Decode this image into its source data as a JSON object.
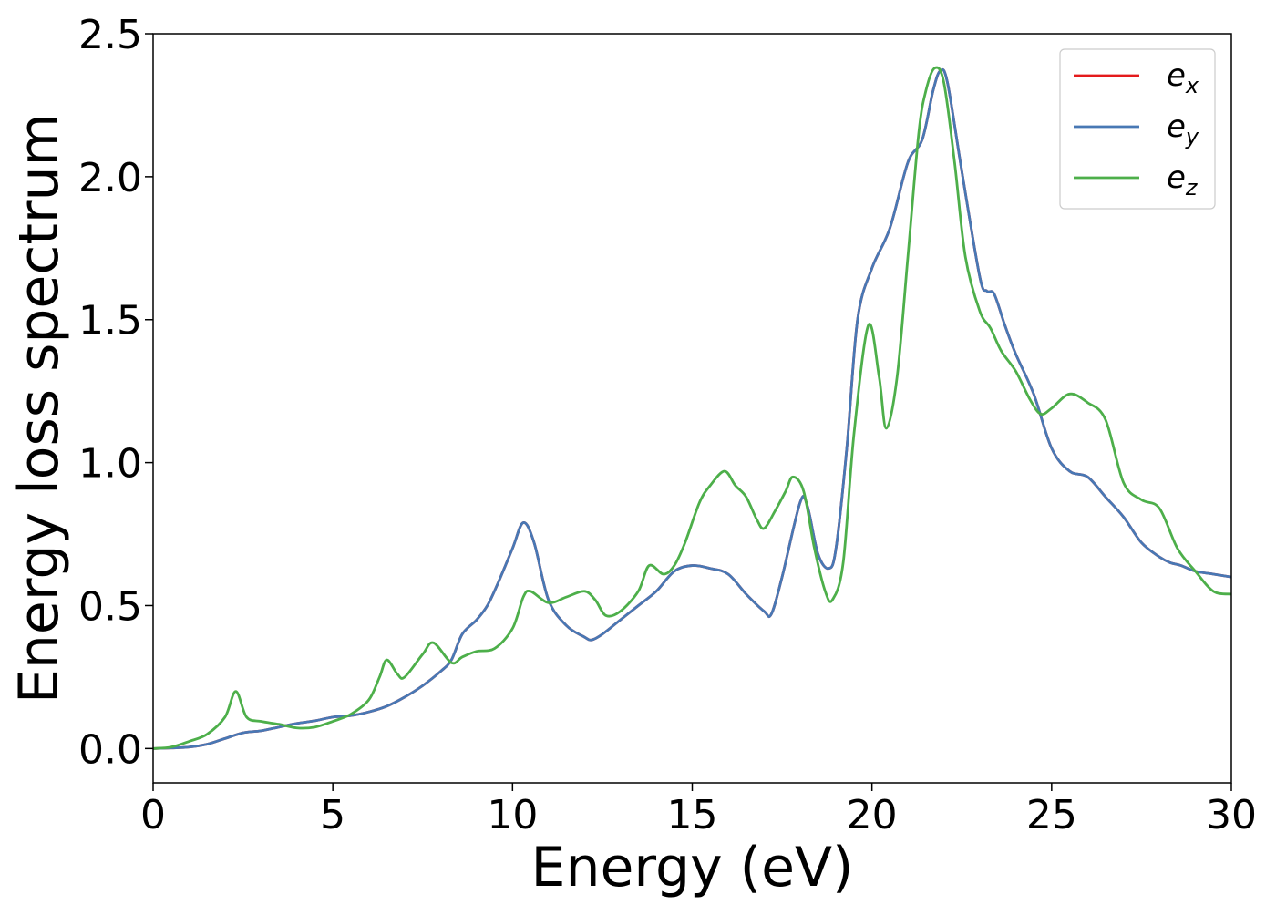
{
  "chart_data": {
    "type": "line",
    "title": "",
    "xlabel": "Energy (eV)",
    "ylabel": "Energy loss spectrum",
    "xlim": [
      0,
      30
    ],
    "ylim": [
      -0.12,
      2.5
    ],
    "xticks": [
      0,
      5,
      10,
      15,
      20,
      25,
      30
    ],
    "xtick_labels": [
      "0",
      "5",
      "10",
      "15",
      "20",
      "25",
      "30"
    ],
    "yticks": [
      0.0,
      0.5,
      1.0,
      1.5,
      2.0,
      2.5
    ],
    "ytick_labels": [
      "0.0",
      "0.5",
      "1.0",
      "1.5",
      "2.0",
      "2.5"
    ],
    "grid": false,
    "legend_position": "top-right",
    "series": [
      {
        "name": "e_x",
        "legend_base": "e",
        "legend_sub": "x",
        "color": "#e41a1c",
        "points": [
          [
            0,
            0
          ],
          [
            0.5,
            0.002
          ],
          [
            1.0,
            0.005
          ],
          [
            1.5,
            0.015
          ],
          [
            2.0,
            0.035
          ],
          [
            2.5,
            0.055
          ],
          [
            3.0,
            0.062
          ],
          [
            3.5,
            0.075
          ],
          [
            4.0,
            0.088
          ],
          [
            4.5,
            0.097
          ],
          [
            5.0,
            0.11
          ],
          [
            5.5,
            0.115
          ],
          [
            6.0,
            0.128
          ],
          [
            6.5,
            0.148
          ],
          [
            7.0,
            0.18
          ],
          [
            7.5,
            0.22
          ],
          [
            8.0,
            0.27
          ],
          [
            8.3,
            0.31
          ],
          [
            8.6,
            0.4
          ],
          [
            9.0,
            0.45
          ],
          [
            9.3,
            0.5
          ],
          [
            9.6,
            0.58
          ],
          [
            10.0,
            0.7
          ],
          [
            10.3,
            0.79
          ],
          [
            10.6,
            0.72
          ],
          [
            11.0,
            0.52
          ],
          [
            11.5,
            0.43
          ],
          [
            12.0,
            0.39
          ],
          [
            12.2,
            0.38
          ],
          [
            12.5,
            0.4
          ],
          [
            13.0,
            0.45
          ],
          [
            13.5,
            0.5
          ],
          [
            14.0,
            0.55
          ],
          [
            14.5,
            0.62
          ],
          [
            15.0,
            0.64
          ],
          [
            15.5,
            0.63
          ],
          [
            16.0,
            0.61
          ],
          [
            16.5,
            0.54
          ],
          [
            17.0,
            0.48
          ],
          [
            17.2,
            0.47
          ],
          [
            17.5,
            0.6
          ],
          [
            18.0,
            0.86
          ],
          [
            18.2,
            0.85
          ],
          [
            18.5,
            0.68
          ],
          [
            18.8,
            0.63
          ],
          [
            19.0,
            0.7
          ],
          [
            19.3,
            1.05
          ],
          [
            19.6,
            1.5
          ],
          [
            20.0,
            1.68
          ],
          [
            20.5,
            1.82
          ],
          [
            21.0,
            2.05
          ],
          [
            21.4,
            2.13
          ],
          [
            21.7,
            2.3
          ],
          [
            21.9,
            2.37
          ],
          [
            22.1,
            2.33
          ],
          [
            22.5,
            2.02
          ],
          [
            23.0,
            1.65
          ],
          [
            23.2,
            1.6
          ],
          [
            23.4,
            1.59
          ],
          [
            23.7,
            1.48
          ],
          [
            24.0,
            1.38
          ],
          [
            24.5,
            1.24
          ],
          [
            25.0,
            1.05
          ],
          [
            25.5,
            0.97
          ],
          [
            26.0,
            0.95
          ],
          [
            26.5,
            0.88
          ],
          [
            27.0,
            0.81
          ],
          [
            27.5,
            0.72
          ],
          [
            28.0,
            0.67
          ],
          [
            28.3,
            0.65
          ],
          [
            28.6,
            0.64
          ],
          [
            29.0,
            0.62
          ],
          [
            29.5,
            0.61
          ],
          [
            30.0,
            0.6
          ]
        ]
      },
      {
        "name": "e_y",
        "legend_base": "e",
        "legend_sub": "y",
        "color": "#4878b4",
        "points": [
          [
            0,
            0
          ],
          [
            0.5,
            0.002
          ],
          [
            1.0,
            0.005
          ],
          [
            1.5,
            0.015
          ],
          [
            2.0,
            0.035
          ],
          [
            2.5,
            0.055
          ],
          [
            3.0,
            0.062
          ],
          [
            3.5,
            0.075
          ],
          [
            4.0,
            0.088
          ],
          [
            4.5,
            0.097
          ],
          [
            5.0,
            0.11
          ],
          [
            5.5,
            0.115
          ],
          [
            6.0,
            0.128
          ],
          [
            6.5,
            0.148
          ],
          [
            7.0,
            0.18
          ],
          [
            7.5,
            0.22
          ],
          [
            8.0,
            0.27
          ],
          [
            8.3,
            0.31
          ],
          [
            8.6,
            0.4
          ],
          [
            9.0,
            0.45
          ],
          [
            9.3,
            0.5
          ],
          [
            9.6,
            0.58
          ],
          [
            10.0,
            0.7
          ],
          [
            10.3,
            0.79
          ],
          [
            10.6,
            0.72
          ],
          [
            11.0,
            0.52
          ],
          [
            11.5,
            0.43
          ],
          [
            12.0,
            0.39
          ],
          [
            12.2,
            0.38
          ],
          [
            12.5,
            0.4
          ],
          [
            13.0,
            0.45
          ],
          [
            13.5,
            0.5
          ],
          [
            14.0,
            0.55
          ],
          [
            14.5,
            0.62
          ],
          [
            15.0,
            0.64
          ],
          [
            15.5,
            0.63
          ],
          [
            16.0,
            0.61
          ],
          [
            16.5,
            0.54
          ],
          [
            17.0,
            0.48
          ],
          [
            17.2,
            0.47
          ],
          [
            17.5,
            0.6
          ],
          [
            18.0,
            0.86
          ],
          [
            18.2,
            0.85
          ],
          [
            18.5,
            0.68
          ],
          [
            18.8,
            0.63
          ],
          [
            19.0,
            0.7
          ],
          [
            19.3,
            1.05
          ],
          [
            19.6,
            1.5
          ],
          [
            20.0,
            1.68
          ],
          [
            20.5,
            1.82
          ],
          [
            21.0,
            2.05
          ],
          [
            21.4,
            2.13
          ],
          [
            21.7,
            2.3
          ],
          [
            21.9,
            2.37
          ],
          [
            22.1,
            2.33
          ],
          [
            22.5,
            2.02
          ],
          [
            23.0,
            1.65
          ],
          [
            23.2,
            1.6
          ],
          [
            23.4,
            1.59
          ],
          [
            23.7,
            1.48
          ],
          [
            24.0,
            1.38
          ],
          [
            24.5,
            1.24
          ],
          [
            25.0,
            1.05
          ],
          [
            25.5,
            0.97
          ],
          [
            26.0,
            0.95
          ],
          [
            26.5,
            0.88
          ],
          [
            27.0,
            0.81
          ],
          [
            27.5,
            0.72
          ],
          [
            28.0,
            0.67
          ],
          [
            28.3,
            0.65
          ],
          [
            28.6,
            0.64
          ],
          [
            29.0,
            0.62
          ],
          [
            29.5,
            0.61
          ],
          [
            30.0,
            0.6
          ]
        ]
      },
      {
        "name": "e_z",
        "legend_base": "e",
        "legend_sub": "z",
        "color": "#4daf4a",
        "points": [
          [
            0,
            0
          ],
          [
            0.5,
            0.005
          ],
          [
            1.0,
            0.025
          ],
          [
            1.5,
            0.05
          ],
          [
            2.0,
            0.11
          ],
          [
            2.3,
            0.2
          ],
          [
            2.6,
            0.11
          ],
          [
            3.0,
            0.095
          ],
          [
            3.5,
            0.085
          ],
          [
            4.0,
            0.072
          ],
          [
            4.5,
            0.075
          ],
          [
            5.0,
            0.095
          ],
          [
            5.5,
            0.12
          ],
          [
            6.0,
            0.17
          ],
          [
            6.3,
            0.25
          ],
          [
            6.5,
            0.31
          ],
          [
            6.8,
            0.26
          ],
          [
            7.0,
            0.25
          ],
          [
            7.5,
            0.33
          ],
          [
            7.8,
            0.37
          ],
          [
            8.3,
            0.3
          ],
          [
            8.6,
            0.32
          ],
          [
            9.0,
            0.34
          ],
          [
            9.5,
            0.35
          ],
          [
            10.0,
            0.42
          ],
          [
            10.3,
            0.53
          ],
          [
            10.5,
            0.55
          ],
          [
            11.0,
            0.51
          ],
          [
            11.5,
            0.53
          ],
          [
            12.0,
            0.55
          ],
          [
            12.3,
            0.52
          ],
          [
            12.6,
            0.465
          ],
          [
            13.0,
            0.48
          ],
          [
            13.5,
            0.55
          ],
          [
            13.8,
            0.64
          ],
          [
            14.2,
            0.61
          ],
          [
            14.5,
            0.64
          ],
          [
            14.8,
            0.72
          ],
          [
            15.2,
            0.86
          ],
          [
            15.5,
            0.92
          ],
          [
            15.9,
            0.97
          ],
          [
            16.2,
            0.92
          ],
          [
            16.5,
            0.88
          ],
          [
            16.8,
            0.8
          ],
          [
            17.0,
            0.77
          ],
          [
            17.3,
            0.83
          ],
          [
            17.6,
            0.9
          ],
          [
            17.8,
            0.95
          ],
          [
            18.1,
            0.9
          ],
          [
            18.4,
            0.7
          ],
          [
            18.7,
            0.55
          ],
          [
            18.9,
            0.52
          ],
          [
            19.2,
            0.65
          ],
          [
            19.5,
            1.1
          ],
          [
            19.9,
            1.48
          ],
          [
            20.2,
            1.3
          ],
          [
            20.4,
            1.12
          ],
          [
            20.7,
            1.3
          ],
          [
            21.0,
            1.72
          ],
          [
            21.3,
            2.15
          ],
          [
            21.5,
            2.3
          ],
          [
            21.75,
            2.38
          ],
          [
            22.0,
            2.33
          ],
          [
            22.3,
            2.05
          ],
          [
            22.6,
            1.72
          ],
          [
            23.0,
            1.53
          ],
          [
            23.3,
            1.47
          ],
          [
            23.6,
            1.39
          ],
          [
            24.0,
            1.32
          ],
          [
            24.4,
            1.22
          ],
          [
            24.7,
            1.17
          ],
          [
            25.0,
            1.19
          ],
          [
            25.5,
            1.24
          ],
          [
            26.0,
            1.21
          ],
          [
            26.5,
            1.15
          ],
          [
            27.0,
            0.93
          ],
          [
            27.5,
            0.87
          ],
          [
            28.0,
            0.84
          ],
          [
            28.5,
            0.7
          ],
          [
            29.0,
            0.62
          ],
          [
            29.5,
            0.55
          ],
          [
            30.0,
            0.54
          ]
        ]
      }
    ]
  }
}
